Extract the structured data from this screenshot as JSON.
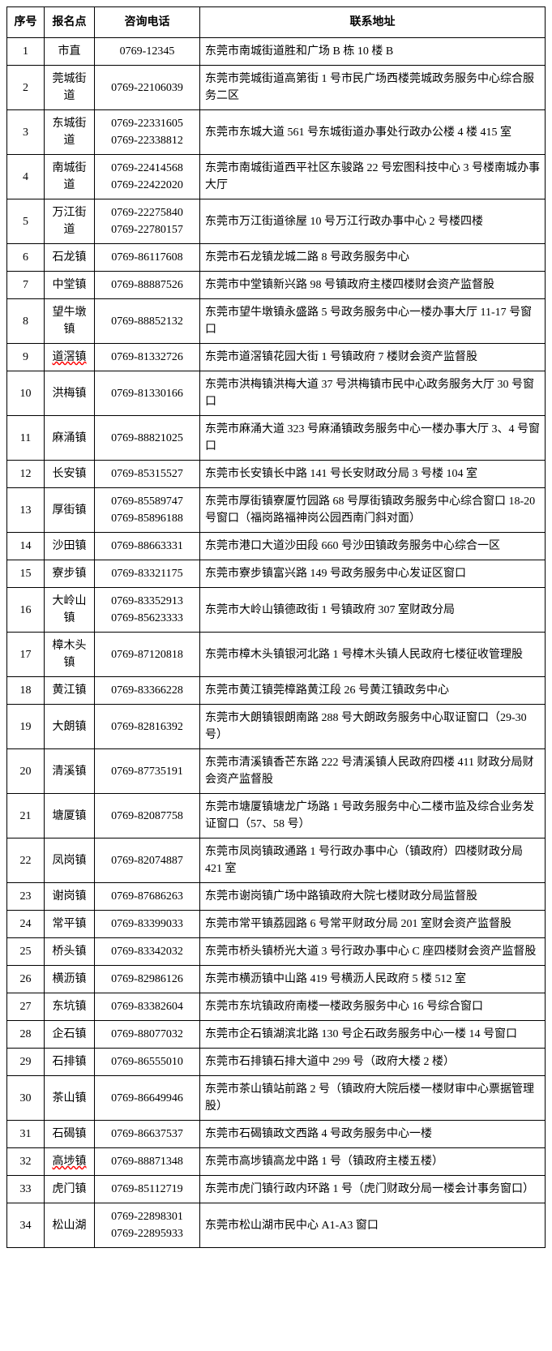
{
  "table": {
    "columns": [
      "序号",
      "报名点",
      "咨询电话",
      "联系地址"
    ],
    "rows": [
      {
        "seq": "1",
        "point": "市直",
        "phone": "0769-12345",
        "addr": "东莞市南城街道胜和广场 B 栋 10 楼 B"
      },
      {
        "seq": "2",
        "point": "莞城街道",
        "phone": "0769-22106039",
        "addr": "东莞市莞城街道高第街 1 号市民广场西楼莞城政务服务中心综合服务二区"
      },
      {
        "seq": "3",
        "point": "东城街道",
        "phone": "0769-22331605\n0769-22338812",
        "addr": "东莞市东城大道 561 号东城街道办事处行政办公楼 4 楼 415 室"
      },
      {
        "seq": "4",
        "point": "南城街道",
        "phone": "0769-22414568\n0769-22422020",
        "addr": "东莞市南城街道西平社区东骏路 22 号宏图科技中心 3 号楼南城办事大厅"
      },
      {
        "seq": "5",
        "point": "万江街道",
        "phone": "0769-22275840\n0769-22780157",
        "addr": "东莞市万江街道徐屋 10 号万江行政办事中心 2 号楼四楼"
      },
      {
        "seq": "6",
        "point": "石龙镇",
        "phone": "0769-86117608",
        "addr": "东莞市石龙镇龙城二路 8 号政务服务中心"
      },
      {
        "seq": "7",
        "point": "中堂镇",
        "phone": "0769-88887526",
        "addr": "东莞市中堂镇新兴路 98 号镇政府主楼四楼财会资产监督股"
      },
      {
        "seq": "8",
        "point": "望牛墩镇",
        "phone": "0769-88852132",
        "addr": "东莞市望牛墩镇永盛路 5 号政务服务中心一楼办事大厅 11-17 号窗口"
      },
      {
        "seq": "9",
        "point": "道滘镇",
        "phone": "0769-81332726",
        "point_wavy": true,
        "addr": "东莞市道滘镇花园大街 1 号镇政府 7 楼财会资产监督股"
      },
      {
        "seq": "10",
        "point": "洪梅镇",
        "phone": "0769-81330166",
        "addr": "东莞市洪梅镇洪梅大道 37 号洪梅镇市民中心政务服务大厅 30 号窗口"
      },
      {
        "seq": "11",
        "point": "麻涌镇",
        "phone": "0769-88821025",
        "addr": "东莞市麻涌大道 323 号麻涌镇政务服务中心一楼办事大厅 3、4 号窗口"
      },
      {
        "seq": "12",
        "point": "长安镇",
        "phone": "0769-85315527",
        "addr": "东莞市长安镇长中路 141 号长安财政分局 3 号楼 104 室"
      },
      {
        "seq": "13",
        "point": "厚街镇",
        "phone": "0769-85589747\n0769-85896188",
        "addr": "东莞市厚街镇寮厦竹园路 68 号厚街镇政务服务中心综合窗口 18-20 号窗口（福岗路福神岗公园西南门斜对面）"
      },
      {
        "seq": "14",
        "point": "沙田镇",
        "phone": "0769-88663331",
        "addr": "东莞市港口大道沙田段 660 号沙田镇政务服务中心综合一区"
      },
      {
        "seq": "15",
        "point": "寮步镇",
        "phone": "0769-83321175",
        "addr": "东莞市寮步镇富兴路 149 号政务服务中心发证区窗口"
      },
      {
        "seq": "16",
        "point": "大岭山镇",
        "phone": "0769-83352913\n0769-85623333",
        "addr": "东莞市大岭山镇德政街 1 号镇政府 307 室财政分局"
      },
      {
        "seq": "17",
        "point": "樟木头镇",
        "phone": "0769-87120818",
        "addr": "东莞市樟木头镇银河北路 1 号樟木头镇人民政府七楼征收管理股"
      },
      {
        "seq": "18",
        "point": "黄江镇",
        "phone": "0769-83366228",
        "addr": "东莞市黄江镇莞樟路黄江段 26 号黄江镇政务中心"
      },
      {
        "seq": "19",
        "point": "大朗镇",
        "phone": "0769-82816392",
        "addr": "东莞市大朗镇银朗南路 288 号大朗政务服务中心取证窗口（29-30 号）"
      },
      {
        "seq": "20",
        "point": "清溪镇",
        "phone": "0769-87735191",
        "addr": "东莞市清溪镇香芒东路 222 号清溪镇人民政府四楼 411 财政分局财会资产监督股"
      },
      {
        "seq": "21",
        "point": "塘厦镇",
        "phone": "0769-82087758",
        "addr": "东莞市塘厦镇塘龙广场路 1 号政务服务中心二楼市监及综合业务发证窗口（57、58 号）"
      },
      {
        "seq": "22",
        "point": "凤岗镇",
        "phone": "0769-82074887",
        "addr": "东莞市凤岗镇政通路 1 号行政办事中心（镇政府）四楼财政分局 421 室"
      },
      {
        "seq": "23",
        "point": "谢岗镇",
        "phone": "0769-87686263",
        "addr": "东莞市谢岗镇广场中路镇政府大院七楼财政分局监督股"
      },
      {
        "seq": "24",
        "point": "常平镇",
        "phone": "0769-83399033",
        "addr": "东莞市常平镇荔园路 6 号常平财政分局 201 室财会资产监督股"
      },
      {
        "seq": "25",
        "point": "桥头镇",
        "phone": "0769-83342032",
        "addr": "东莞市桥头镇桥光大道 3 号行政办事中心 C 座四楼财会资产监督股"
      },
      {
        "seq": "26",
        "point": "横沥镇",
        "phone": "0769-82986126",
        "addr": "东莞市横沥镇中山路 419 号横沥人民政府 5 楼 512 室"
      },
      {
        "seq": "27",
        "point": "东坑镇",
        "phone": "0769-83382604",
        "addr": "东莞市东坑镇政府南楼一楼政务服务中心 16 号综合窗口"
      },
      {
        "seq": "28",
        "point": "企石镇",
        "phone": "0769-88077032",
        "addr": "东莞市企石镇湖滨北路 130 号企石政务服务中心一楼 14 号窗口"
      },
      {
        "seq": "29",
        "point": "石排镇",
        "phone": "0769-86555010",
        "addr": "东莞市石排镇石排大道中 299 号（政府大楼 2 楼）"
      },
      {
        "seq": "30",
        "point": "茶山镇",
        "phone": "0769-86649946",
        "addr": "东莞市茶山镇站前路 2 号（镇政府大院后楼一楼财审中心票据管理股）"
      },
      {
        "seq": "31",
        "point": "石碣镇",
        "phone": "0769-86637537",
        "addr": "东莞市石碣镇政文西路 4 号政务服务中心一楼"
      },
      {
        "seq": "32",
        "point": "高埗镇",
        "phone": "0769-88871348",
        "point_wavy": true,
        "addr": "东莞市高埗镇高龙中路 1 号（镇政府主楼五楼）"
      },
      {
        "seq": "33",
        "point": "虎门镇",
        "phone": "0769-85112719",
        "addr": "东莞市虎门镇行政内环路 1 号（虎门财政分局一楼会计事务窗口）"
      },
      {
        "seq": "34",
        "point": "松山湖",
        "phone": "0769-22898301\n0769-22895933",
        "addr": "东莞市松山湖市民中心 A1-A3 窗口"
      }
    ]
  }
}
